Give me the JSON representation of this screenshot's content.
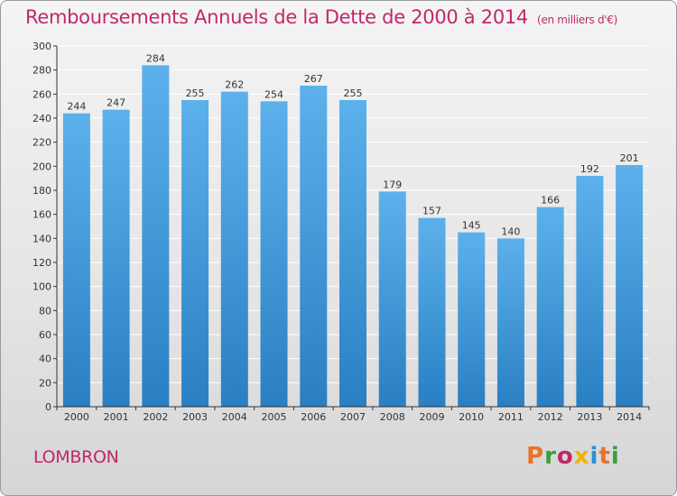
{
  "chart_data": {
    "type": "bar",
    "title": "Remboursements Annuels de la Dette de 2000 à 2014",
    "unit_note": "(en milliers d'€)",
    "categories": [
      "2000",
      "2001",
      "2002",
      "2003",
      "2004",
      "2005",
      "2006",
      "2007",
      "2008",
      "2009",
      "2010",
      "2011",
      "2012",
      "2013",
      "2014"
    ],
    "values": [
      244,
      247,
      284,
      255,
      262,
      254,
      267,
      255,
      179,
      157,
      145,
      140,
      166,
      192,
      201
    ],
    "ylim": [
      0,
      300
    ],
    "yticks": [
      0,
      20,
      40,
      60,
      80,
      100,
      120,
      140,
      160,
      180,
      200,
      220,
      240,
      260,
      280,
      300
    ],
    "grid": true,
    "xlabel": "",
    "ylabel": "",
    "bar_color": "#4a9fe0"
  },
  "footer": {
    "place": "LOMBRON",
    "logo_text": "Proxiti",
    "logo_colors": [
      "#e8732a",
      "#3a9f3a",
      "#c0286a",
      "#f0b400",
      "#2b8fd6",
      "#e8732a",
      "#3a9f3a"
    ]
  },
  "colors": {
    "title": "#c0286a",
    "grid": "#ffffff",
    "axis": "#333333"
  }
}
